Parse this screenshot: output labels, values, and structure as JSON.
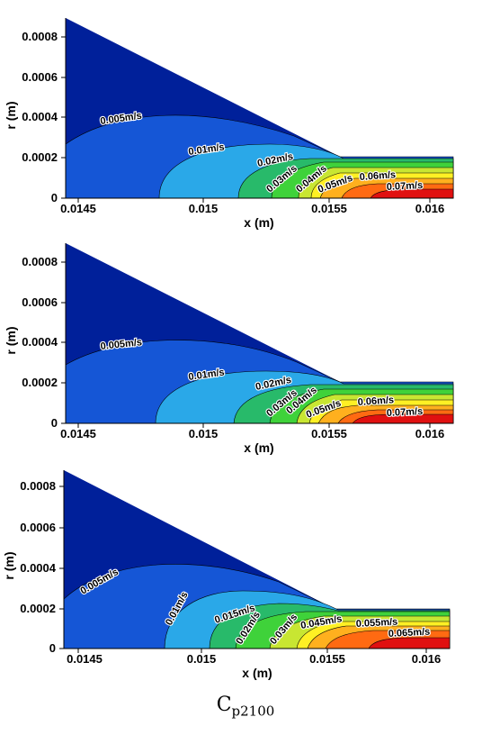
{
  "figure": {
    "caption_main": "C",
    "caption_sub": "p2100"
  },
  "colors": {
    "band": [
      "#00209a",
      "#1556d6",
      "#2aa8e8",
      "#28ba6a",
      "#3fd23a",
      "#c8e632",
      "#fff024",
      "#ffb01e",
      "#ff6a12",
      "#e01010"
    ],
    "outline": "#000000"
  },
  "chart_data": [
    {
      "type": "contour",
      "xlabel": "x (m)",
      "ylabel": "r (m)",
      "xlim": [
        0.01442,
        0.01604
      ],
      "ylim": [
        0,
        0.00088
      ],
      "x_ticks": [
        "0.0145",
        "0.015",
        "0.0155",
        "0.016"
      ],
      "y_ticks": [
        "0",
        "0.0002",
        "0.0004",
        "0.0006",
        "0.0008"
      ],
      "contour_labels": [
        "0.005m/s",
        "0.01m/s",
        "0.02m/s",
        "0.03m/s",
        "0.04m/s",
        "0.05m/s",
        "0.06m/s",
        "0.07m/s"
      ]
    },
    {
      "type": "contour",
      "xlabel": "x (m)",
      "ylabel": "r (m)",
      "xlim": [
        0.01442,
        0.01604
      ],
      "ylim": [
        0,
        0.00088
      ],
      "x_ticks": [
        "0.0145",
        "0.015",
        "0.0155",
        "0.016"
      ],
      "y_ticks": [
        "0",
        "0.0002",
        "0.0004",
        "0.0006",
        "0.0008"
      ],
      "contour_labels": [
        "0.005m/s",
        "0.01m/s",
        "0.02m/s",
        "0.03m/s",
        "0.04m/s",
        "0.05m/s",
        "0.06m/s",
        "0.07m/s"
      ]
    },
    {
      "type": "contour",
      "xlabel": "x (m)",
      "ylabel": "r (m)",
      "xlim": [
        0.01442,
        0.01604
      ],
      "ylim": [
        0,
        0.00088
      ],
      "x_ticks": [
        "0.0145",
        "0.015",
        "0.0155",
        "0.016"
      ],
      "y_ticks": [
        "0",
        "0.0002",
        "0.0004",
        "0.0006",
        "0.0008"
      ],
      "contour_labels": [
        "0.005m/s",
        "0.01m/s",
        "0.015m/s",
        "0.02m/s",
        "0.03m/s",
        "0.045m/s",
        "0.055m/s",
        "0.065m/s"
      ]
    }
  ]
}
